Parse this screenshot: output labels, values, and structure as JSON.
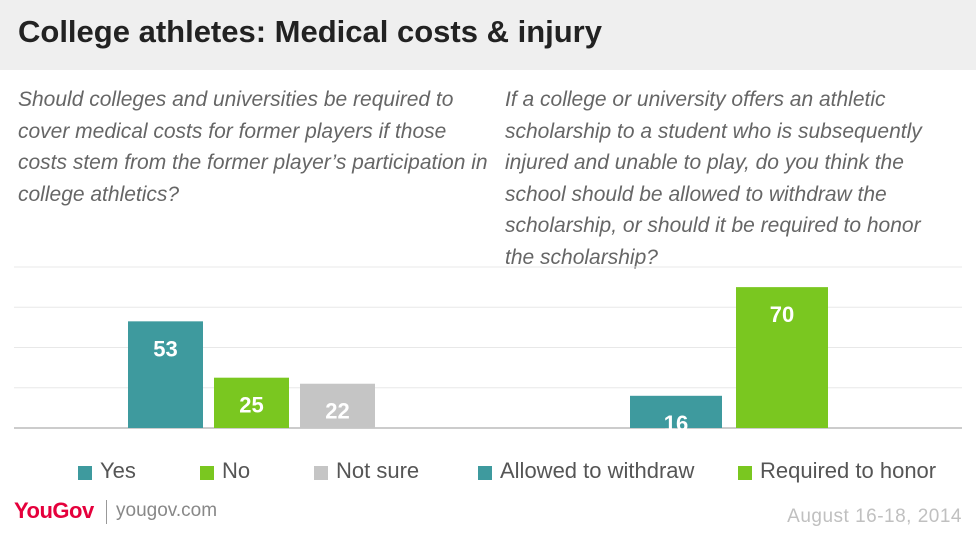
{
  "header": {
    "title": "College athletes: Medical costs & injury"
  },
  "chart_data": [
    {
      "type": "bar",
      "question": "Should colleges and universities be required to cover medical costs for former players if those costs stem from the former player’s participation in college athletics?",
      "categories": [
        "Yes",
        "No",
        "Not sure"
      ],
      "values": [
        53,
        25,
        22
      ],
      "colors": [
        "#3e9a9e",
        "#7ac720",
        "#c5c5c5"
      ],
      "ylim": [
        0,
        80
      ],
      "grid": true
    },
    {
      "type": "bar",
      "question": "If a college or university offers an athletic scholarship to a student who is subsequently injured and unable to play, do you think the school should be allowed to withdraw the scholarship, or should it be required to honor the scholarship?",
      "categories": [
        "Allowed to withdraw",
        "Required to honor"
      ],
      "values": [
        16,
        70
      ],
      "colors": [
        "#3e9a9e",
        "#7ac720"
      ],
      "ylim": [
        0,
        80
      ],
      "grid": true
    }
  ],
  "legend": [
    {
      "label": "Yes",
      "color": "#3e9a9e"
    },
    {
      "label": "No",
      "color": "#7ac720"
    },
    {
      "label": "Not sure",
      "color": "#c5c5c5"
    },
    {
      "label": "Allowed to withdraw",
      "color": "#3e9a9e"
    },
    {
      "label": "Required to honor",
      "color": "#7ac720"
    }
  ],
  "footer": {
    "logo": "YouGov",
    "site": "yougov.com",
    "date": "August 16-18, 2014"
  }
}
